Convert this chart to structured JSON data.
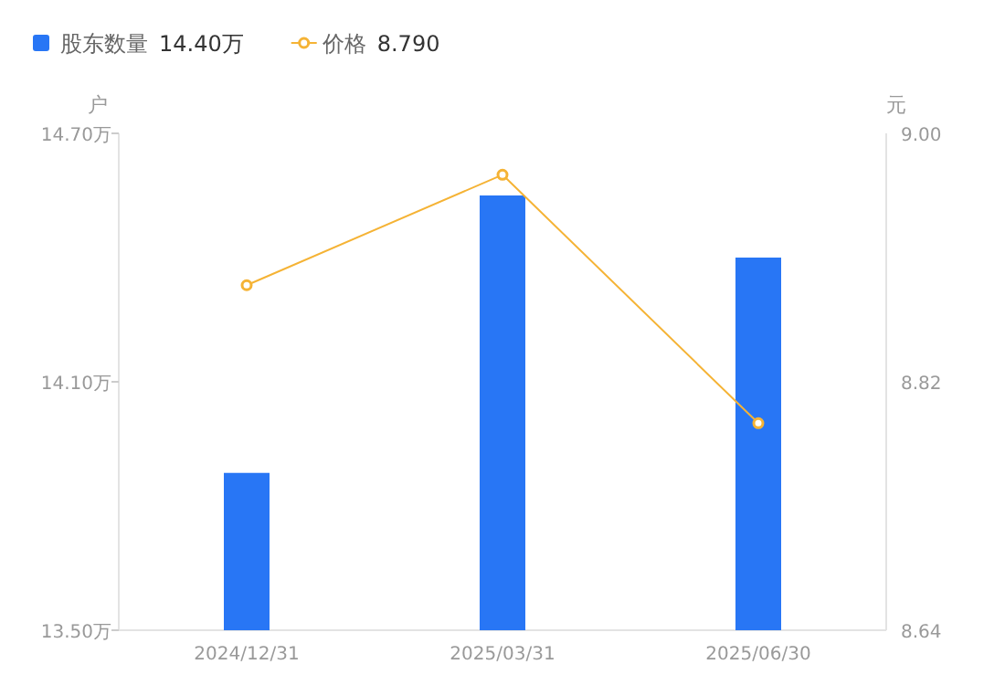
{
  "chart_data": {
    "type": "bar",
    "categories": [
      "2024/12/31",
      "2025/03/31",
      "2025/06/30"
    ],
    "series": [
      {
        "name": "股东数量",
        "color": "#2876f5",
        "values": [
          13.88,
          14.55,
          14.4
        ]
      },
      {
        "name": "价格",
        "type": "line",
        "color": "#f5b335",
        "axis": "y2",
        "marker": "circle",
        "values": [
          8.89,
          8.97,
          8.79
        ]
      }
    ],
    "ylabel": "户",
    "y2label": "元",
    "ylim": [
      13.5,
      14.7
    ],
    "yticks": [
      {
        "value": 13.5,
        "label": "13.50万"
      },
      {
        "value": 14.1,
        "label": "14.10万"
      },
      {
        "value": 14.7,
        "label": "14.70万"
      }
    ],
    "y2lim": [
      8.64,
      9.0
    ],
    "y2ticks": [
      {
        "value": 8.64,
        "label": "8.64"
      },
      {
        "value": 8.82,
        "label": "8.82"
      },
      {
        "value": 9.0,
        "label": "9.00"
      }
    ],
    "legend": "top left",
    "annotations": [
      "14.40万",
      "8.790"
    ]
  }
}
